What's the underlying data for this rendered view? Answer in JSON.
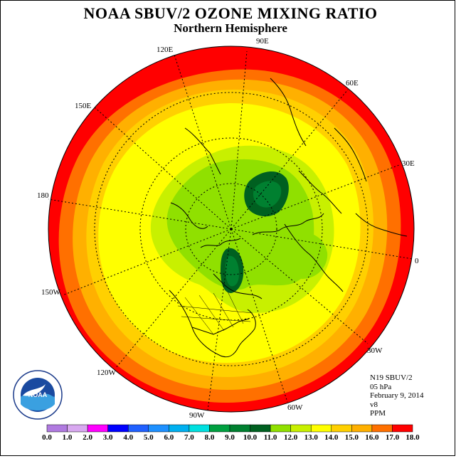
{
  "title": "NOAA SBUV/2 OZONE MIXING RATIO",
  "subtitle": "Northern Hemisphere",
  "longitude_labels": [
    {
      "key": "lon-90e",
      "text": "90E"
    },
    {
      "key": "lon-60e",
      "text": "60E"
    },
    {
      "key": "lon-30e",
      "text": "30E"
    },
    {
      "key": "lon-0",
      "text": "0"
    },
    {
      "key": "lon-30w",
      "text": "30W"
    },
    {
      "key": "lon-60w",
      "text": "60W"
    },
    {
      "key": "lon-90w",
      "text": "90W"
    },
    {
      "key": "lon-120w",
      "text": "120W"
    },
    {
      "key": "lon-150w",
      "text": "150W"
    },
    {
      "key": "lon-180",
      "text": "180"
    },
    {
      "key": "lon-150e",
      "text": "150E"
    },
    {
      "key": "lon-120e",
      "text": "120E"
    }
  ],
  "info": {
    "satellite": "N19 SBUV/2",
    "level": "05 hPa",
    "date": "February 9, 2014",
    "version": "v8",
    "units": "PPM"
  },
  "logo": {
    "text": "NOAA",
    "ring_text": "NATIONAL OCEANIC AND ATMOSPHERIC ADMINISTRATION · U.S. DEPARTMENT OF COMMERCE"
  },
  "colorbar": {
    "ticks": [
      "0.0",
      "1.0",
      "2.0",
      "3.0",
      "4.0",
      "5.0",
      "6.0",
      "7.0",
      "8.0",
      "9.0",
      "10.0",
      "11.0",
      "12.0",
      "13.0",
      "14.0",
      "15.0",
      "16.0",
      "17.0",
      "18.0"
    ],
    "colors": [
      "#b07ae0",
      "#d8a8f0",
      "#ff00ff",
      "#0000ff",
      "#2060ff",
      "#1e90ff",
      "#00b0f0",
      "#00e0e0",
      "#00a040",
      "#008030",
      "#006020",
      "#90e000",
      "#c8f000",
      "#ffff00",
      "#ffd000",
      "#ffb000",
      "#ff7000",
      "#ff0000",
      "#805030"
    ]
  }
}
